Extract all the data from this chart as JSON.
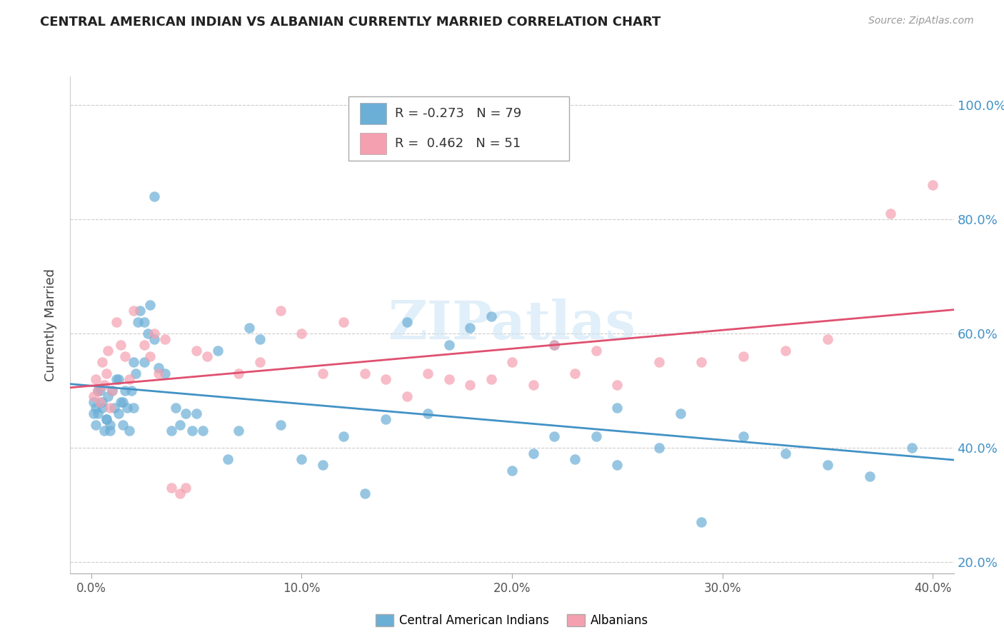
{
  "title": "CENTRAL AMERICAN INDIAN VS ALBANIAN CURRENTLY MARRIED CORRELATION CHART",
  "source": "Source: ZipAtlas.com",
  "xlabel_ticks": [
    "0.0%",
    "10.0%",
    "20.0%",
    "30.0%",
    "40.0%"
  ],
  "xlabel_tick_vals": [
    0.0,
    0.1,
    0.2,
    0.3,
    0.4
  ],
  "ylabel_ticks": [
    "20.0%",
    "40.0%",
    "60.0%",
    "80.0%",
    "100.0%"
  ],
  "ylabel_tick_vals": [
    0.2,
    0.4,
    0.6,
    0.8,
    1.0
  ],
  "ylabel": "Currently Married",
  "legend_label1": "Central American Indians",
  "legend_label2": "Albanians",
  "R1": -0.273,
  "N1": 79,
  "R2": 0.462,
  "N2": 51,
  "color_blue": "#6baed6",
  "color_pink": "#f4a0b0",
  "color_blue_line": "#4292c6",
  "color_pink_line": "#e05070",
  "color_blue_text": "#4292c6",
  "watermark": "ZIPatlas",
  "xmin": -0.01,
  "xmax": 0.41,
  "ymin": 0.18,
  "ymax": 1.05,
  "blue_x": [
    0.001,
    0.002,
    0.003,
    0.004,
    0.005,
    0.006,
    0.007,
    0.008,
    0.009,
    0.01,
    0.012,
    0.013,
    0.014,
    0.015,
    0.016,
    0.017,
    0.018,
    0.019,
    0.02,
    0.021,
    0.022,
    0.023,
    0.025,
    0.027,
    0.028,
    0.03,
    0.032,
    0.035,
    0.038,
    0.04,
    0.042,
    0.045,
    0.048,
    0.05,
    0.053,
    0.06,
    0.065,
    0.07,
    0.075,
    0.08,
    0.09,
    0.1,
    0.11,
    0.12,
    0.13,
    0.14,
    0.15,
    0.16,
    0.17,
    0.18,
    0.19,
    0.2,
    0.21,
    0.22,
    0.23,
    0.24,
    0.25,
    0.27,
    0.29,
    0.31,
    0.33,
    0.35,
    0.37,
    0.39,
    0.001,
    0.002,
    0.003,
    0.005,
    0.007,
    0.009,
    0.011,
    0.013,
    0.015,
    0.02,
    0.025,
    0.03,
    0.22,
    0.25,
    0.28
  ],
  "blue_y": [
    0.48,
    0.44,
    0.46,
    0.5,
    0.47,
    0.43,
    0.45,
    0.49,
    0.44,
    0.5,
    0.52,
    0.46,
    0.48,
    0.44,
    0.5,
    0.47,
    0.43,
    0.5,
    0.47,
    0.53,
    0.62,
    0.64,
    0.55,
    0.6,
    0.65,
    0.59,
    0.54,
    0.53,
    0.43,
    0.47,
    0.44,
    0.46,
    0.43,
    0.46,
    0.43,
    0.57,
    0.38,
    0.43,
    0.61,
    0.59,
    0.44,
    0.38,
    0.37,
    0.42,
    0.32,
    0.45,
    0.62,
    0.46,
    0.58,
    0.61,
    0.63,
    0.36,
    0.39,
    0.42,
    0.38,
    0.42,
    0.37,
    0.4,
    0.27,
    0.42,
    0.39,
    0.37,
    0.35,
    0.4,
    0.46,
    0.47,
    0.5,
    0.48,
    0.45,
    0.43,
    0.47,
    0.52,
    0.48,
    0.55,
    0.62,
    0.84,
    0.58,
    0.47,
    0.46
  ],
  "pink_x": [
    0.001,
    0.002,
    0.003,
    0.004,
    0.005,
    0.006,
    0.007,
    0.008,
    0.009,
    0.01,
    0.012,
    0.014,
    0.016,
    0.018,
    0.02,
    0.025,
    0.028,
    0.03,
    0.032,
    0.035,
    0.038,
    0.042,
    0.045,
    0.05,
    0.055,
    0.07,
    0.08,
    0.09,
    0.1,
    0.11,
    0.12,
    0.13,
    0.14,
    0.15,
    0.16,
    0.17,
    0.18,
    0.19,
    0.2,
    0.21,
    0.22,
    0.23,
    0.24,
    0.25,
    0.27,
    0.29,
    0.31,
    0.33,
    0.35,
    0.38,
    0.4
  ],
  "pink_y": [
    0.49,
    0.52,
    0.5,
    0.48,
    0.55,
    0.51,
    0.53,
    0.57,
    0.47,
    0.5,
    0.62,
    0.58,
    0.56,
    0.52,
    0.64,
    0.58,
    0.56,
    0.6,
    0.53,
    0.59,
    0.33,
    0.32,
    0.33,
    0.57,
    0.56,
    0.53,
    0.55,
    0.64,
    0.6,
    0.53,
    0.62,
    0.53,
    0.52,
    0.49,
    0.53,
    0.52,
    0.51,
    0.52,
    0.55,
    0.51,
    0.58,
    0.53,
    0.57,
    0.51,
    0.55,
    0.55,
    0.56,
    0.57,
    0.59,
    0.81,
    0.86
  ]
}
